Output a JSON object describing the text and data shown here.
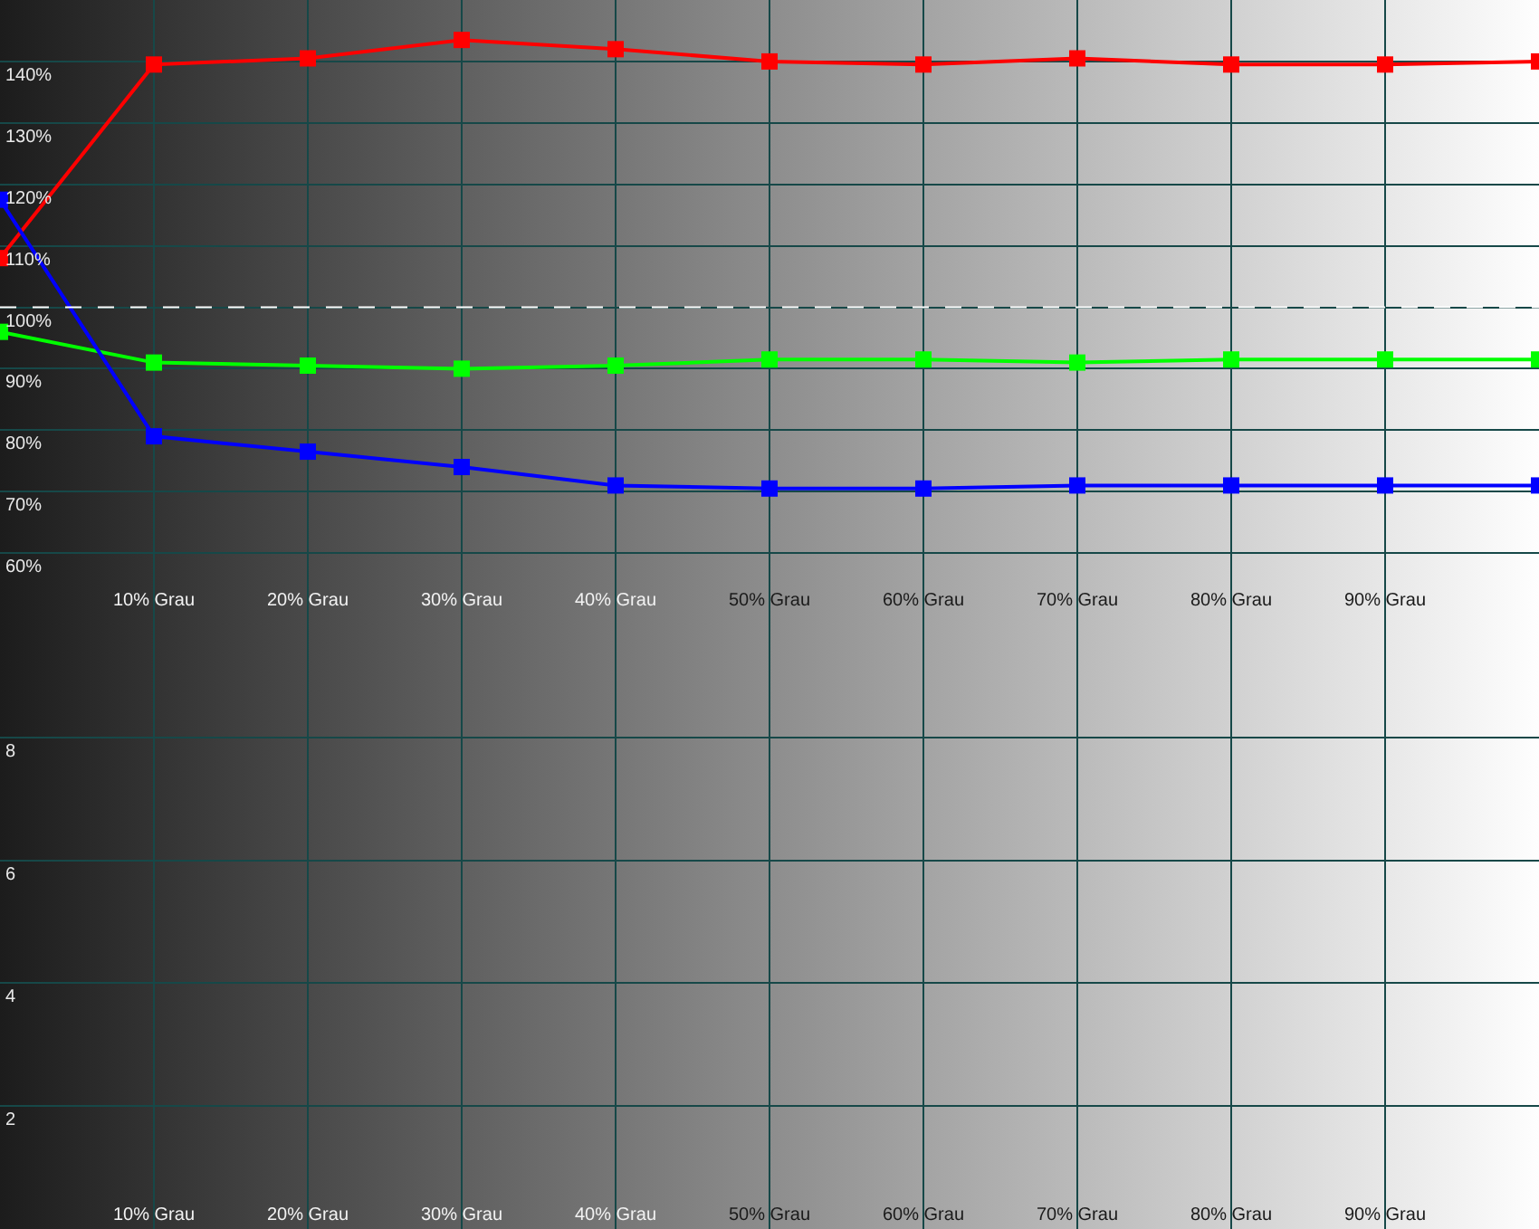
{
  "chart_data": [
    {
      "type": "line",
      "x": [
        0,
        10,
        20,
        30,
        40,
        50,
        60,
        70,
        80,
        90,
        100
      ],
      "xlim": [
        0,
        100
      ],
      "xticks": [
        {
          "value": 10,
          "label": "10% Grau"
        },
        {
          "value": 20,
          "label": "20% Grau"
        },
        {
          "value": 30,
          "label": "30% Grau"
        },
        {
          "value": 40,
          "label": "40% Grau"
        },
        {
          "value": 50,
          "label": "50% Grau"
        },
        {
          "value": 60,
          "label": "60% Grau"
        },
        {
          "value": 70,
          "label": "70% Grau"
        },
        {
          "value": 80,
          "label": "80% Grau"
        },
        {
          "value": 90,
          "label": "90% Grau"
        }
      ],
      "ylim": [
        50,
        150
      ],
      "yticks": [
        {
          "value": 60,
          "label": "60%"
        },
        {
          "value": 70,
          "label": "70%"
        },
        {
          "value": 80,
          "label": "80%"
        },
        {
          "value": 90,
          "label": "90%"
        },
        {
          "value": 100,
          "label": "100%"
        },
        {
          "value": 110,
          "label": "110%"
        },
        {
          "value": 120,
          "label": "120%"
        },
        {
          "value": 130,
          "label": "130%"
        },
        {
          "value": 140,
          "label": "140%"
        }
      ],
      "series": [
        {
          "color": "#ff0000",
          "values": [
            108,
            139.5,
            140.5,
            143.5,
            142,
            140,
            139.5,
            140.5,
            139.5,
            139.5,
            140
          ]
        },
        {
          "color": "#00ff00",
          "values": [
            96,
            91,
            90.5,
            90,
            90.5,
            91.5,
            91.5,
            91,
            91.5,
            91.5,
            91.5
          ]
        },
        {
          "color": "#0000ff",
          "values": [
            117.5,
            79,
            76.5,
            74,
            71,
            70.5,
            70.5,
            71,
            71,
            71,
            71
          ]
        }
      ],
      "ref_lines": [
        {
          "axis": "y",
          "value": 100,
          "color": "#ffffff",
          "line_style": "dashed"
        }
      ],
      "marker": "square",
      "grid": true
    },
    {
      "type": "line",
      "xlim": [
        0,
        100
      ],
      "xticks": [
        {
          "value": 10,
          "label": "10% Grau"
        },
        {
          "value": 20,
          "label": "20% Grau"
        },
        {
          "value": 30,
          "label": "30% Grau"
        },
        {
          "value": 40,
          "label": "40% Grau"
        },
        {
          "value": 50,
          "label": "50% Grau"
        },
        {
          "value": 60,
          "label": "60% Grau"
        },
        {
          "value": 70,
          "label": "70% Grau"
        },
        {
          "value": 80,
          "label": "80% Grau"
        },
        {
          "value": 90,
          "label": "90% Grau"
        }
      ],
      "ylim": [
        0,
        10
      ],
      "yticks": [
        2,
        4,
        6,
        8
      ],
      "grid": true
    }
  ]
}
